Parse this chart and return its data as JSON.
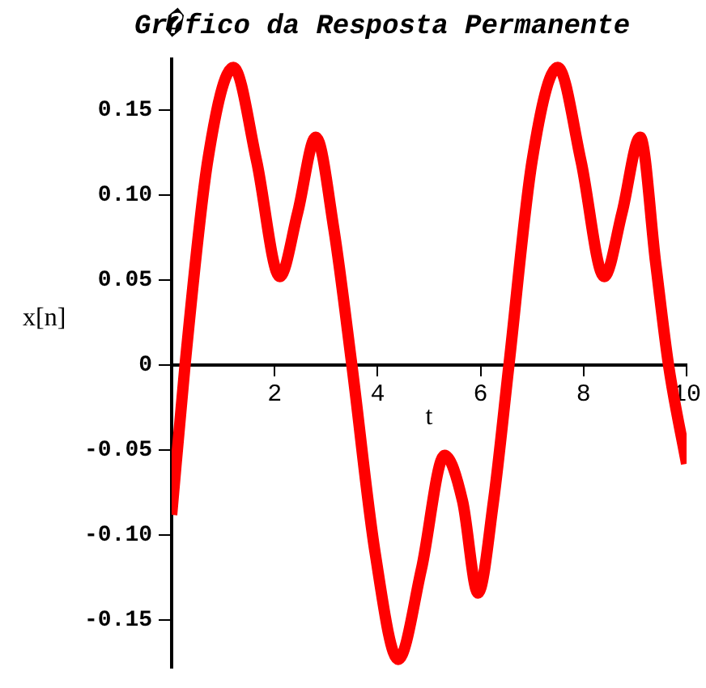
{
  "chart_data": {
    "type": "line",
    "title": "Gr�fico da Resposta Permanente",
    "xlabel": "t",
    "ylabel": "x[n]",
    "x": [
      0,
      0.26,
      0.7,
      1.2,
      1.65,
      2.1,
      2.45,
      2.8,
      3.15,
      3.5,
      3.95,
      4.4,
      4.85,
      5.3,
      5.65,
      5.95,
      6.25,
      6.55,
      7.0,
      7.5,
      7.95,
      8.4,
      8.75,
      9.1,
      9.4,
      9.65,
      10
    ],
    "series": [
      {
        "color": "#ff0000",
        "values": [
          -0.088,
          0,
          0.12,
          0.175,
          0.12,
          0.052,
          0.09,
          0.134,
          0.08,
          0,
          -0.11,
          -0.173,
          -0.12,
          -0.053,
          -0.08,
          -0.134,
          -0.08,
          0,
          0.12,
          0.175,
          0.12,
          0.052,
          0.09,
          0.134,
          0.06,
          0,
          -0.058
        ]
      }
    ],
    "xlim": [
      0,
      10
    ],
    "ylim": [
      -0.178,
      0.18
    ],
    "xticks": [
      2,
      4,
      6,
      8,
      10
    ],
    "yticks": [
      {
        "value": -0.15,
        "label": "-0.15"
      },
      {
        "value": -0.1,
        "label": "-0.10"
      },
      {
        "value": -0.05,
        "label": "-0.05"
      },
      0,
      {
        "value": 0.05,
        "label": "0.05"
      },
      {
        "value": 0.1,
        "label": "0.10"
      },
      {
        "value": 0.15,
        "label": "0.15"
      }
    ],
    "grid": false,
    "legend": false,
    "marker": "none",
    "line_style": "solid"
  }
}
